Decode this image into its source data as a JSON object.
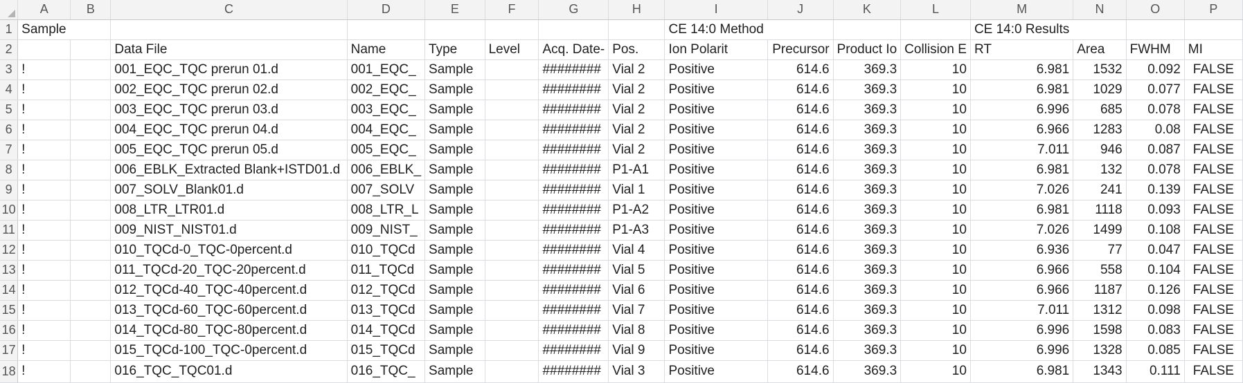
{
  "columns": [
    "A",
    "B",
    "C",
    "D",
    "E",
    "F",
    "G",
    "H",
    "I",
    "J",
    "K",
    "L",
    "M",
    "N",
    "O",
    "P"
  ],
  "rows": [
    {
      "n": "1",
      "a": "Sample",
      "c": "",
      "d": "",
      "e": "",
      "f": "",
      "g": "",
      "h": "",
      "i": "CE 14:0 Method",
      "j": "",
      "k": "",
      "l": "",
      "m": "CE 14:0 Results",
      "nn": "",
      "o": "",
      "p": ""
    },
    {
      "n": "2",
      "a": "",
      "c": "Data File",
      "d": "Name",
      "e": "Type",
      "f": "Level",
      "g": "Acq. Date-",
      "h": "Pos.",
      "i": "Ion Polarit",
      "j": "Precursor",
      "k": "Product Io",
      "l": "Collision E",
      "m": "RT",
      "nn": "Area",
      "o": "FWHM",
      "p": "MI"
    },
    {
      "n": "3",
      "a": "!",
      "c": "001_EQC_TQC prerun 01.d",
      "d": "001_EQC_",
      "e": "Sample",
      "f": "",
      "g": "########",
      "h": "Vial 2",
      "i": "Positive",
      "j": "614.6",
      "k": "369.3",
      "l": "10",
      "m": "6.981",
      "nn": "1532",
      "o": "0.092",
      "p": "FALSE"
    },
    {
      "n": "4",
      "a": "!",
      "c": "002_EQC_TQC prerun 02.d",
      "d": "002_EQC_",
      "e": "Sample",
      "f": "",
      "g": "########",
      "h": "Vial 2",
      "i": "Positive",
      "j": "614.6",
      "k": "369.3",
      "l": "10",
      "m": "6.981",
      "nn": "1029",
      "o": "0.077",
      "p": "FALSE"
    },
    {
      "n": "5",
      "a": "!",
      "c": "003_EQC_TQC prerun 03.d",
      "d": "003_EQC_",
      "e": "Sample",
      "f": "",
      "g": "########",
      "h": "Vial 2",
      "i": "Positive",
      "j": "614.6",
      "k": "369.3",
      "l": "10",
      "m": "6.996",
      "nn": "685",
      "o": "0.078",
      "p": "FALSE"
    },
    {
      "n": "6",
      "a": "!",
      "c": "004_EQC_TQC prerun 04.d",
      "d": "004_EQC_",
      "e": "Sample",
      "f": "",
      "g": "########",
      "h": "Vial 2",
      "i": "Positive",
      "j": "614.6",
      "k": "369.3",
      "l": "10",
      "m": "6.966",
      "nn": "1283",
      "o": "0.08",
      "p": "FALSE"
    },
    {
      "n": "7",
      "a": "!",
      "c": "005_EQC_TQC prerun 05.d",
      "d": "005_EQC_",
      "e": "Sample",
      "f": "",
      "g": "########",
      "h": "Vial 2",
      "i": "Positive",
      "j": "614.6",
      "k": "369.3",
      "l": "10",
      "m": "7.011",
      "nn": "946",
      "o": "0.087",
      "p": "FALSE"
    },
    {
      "n": "8",
      "a": "!",
      "c": "006_EBLK_Extracted Blank+ISTD01.d",
      "d": "006_EBLK_",
      "e": "Sample",
      "f": "",
      "g": "########",
      "h": "P1-A1",
      "i": "Positive",
      "j": "614.6",
      "k": "369.3",
      "l": "10",
      "m": "6.981",
      "nn": "132",
      "o": "0.078",
      "p": "FALSE"
    },
    {
      "n": "9",
      "a": "!",
      "c": "007_SOLV_Blank01.d",
      "d": "007_SOLV",
      "e": "Sample",
      "f": "",
      "g": "########",
      "h": "Vial 1",
      "i": "Positive",
      "j": "614.6",
      "k": "369.3",
      "l": "10",
      "m": "7.026",
      "nn": "241",
      "o": "0.139",
      "p": "FALSE"
    },
    {
      "n": "10",
      "a": "!",
      "c": "008_LTR_LTR01.d",
      "d": "008_LTR_L",
      "e": "Sample",
      "f": "",
      "g": "########",
      "h": "P1-A2",
      "i": "Positive",
      "j": "614.6",
      "k": "369.3",
      "l": "10",
      "m": "6.981",
      "nn": "1118",
      "o": "0.093",
      "p": "FALSE"
    },
    {
      "n": "11",
      "a": "!",
      "c": "009_NIST_NIST01.d",
      "d": "009_NIST_",
      "e": "Sample",
      "f": "",
      "g": "########",
      "h": "P1-A3",
      "i": "Positive",
      "j": "614.6",
      "k": "369.3",
      "l": "10",
      "m": "7.026",
      "nn": "1499",
      "o": "0.108",
      "p": "FALSE"
    },
    {
      "n": "12",
      "a": "!",
      "c": "010_TQCd-0_TQC-0percent.d",
      "d": "010_TQCd",
      "e": "Sample",
      "f": "",
      "g": "########",
      "h": "Vial 4",
      "i": "Positive",
      "j": "614.6",
      "k": "369.3",
      "l": "10",
      "m": "6.936",
      "nn": "77",
      "o": "0.047",
      "p": "FALSE"
    },
    {
      "n": "13",
      "a": "!",
      "c": "011_TQCd-20_TQC-20percent.d",
      "d": "011_TQCd",
      "e": "Sample",
      "f": "",
      "g": "########",
      "h": "Vial 5",
      "i": "Positive",
      "j": "614.6",
      "k": "369.3",
      "l": "10",
      "m": "6.966",
      "nn": "558",
      "o": "0.104",
      "p": "FALSE"
    },
    {
      "n": "14",
      "a": "!",
      "c": "012_TQCd-40_TQC-40percent.d",
      "d": "012_TQCd",
      "e": "Sample",
      "f": "",
      "g": "########",
      "h": "Vial 6",
      "i": "Positive",
      "j": "614.6",
      "k": "369.3",
      "l": "10",
      "m": "6.966",
      "nn": "1187",
      "o": "0.126",
      "p": "FALSE"
    },
    {
      "n": "15",
      "a": "!",
      "c": "013_TQCd-60_TQC-60percent.d",
      "d": "013_TQCd",
      "e": "Sample",
      "f": "",
      "g": "########",
      "h": "Vial 7",
      "i": "Positive",
      "j": "614.6",
      "k": "369.3",
      "l": "10",
      "m": "7.011",
      "nn": "1312",
      "o": "0.098",
      "p": "FALSE"
    },
    {
      "n": "16",
      "a": "!",
      "c": "014_TQCd-80_TQC-80percent.d",
      "d": "014_TQCd",
      "e": "Sample",
      "f": "",
      "g": "########",
      "h": "Vial 8",
      "i": "Positive",
      "j": "614.6",
      "k": "369.3",
      "l": "10",
      "m": "6.996",
      "nn": "1598",
      "o": "0.083",
      "p": "FALSE"
    },
    {
      "n": "17",
      "a": "!",
      "c": "015_TQCd-100_TQC-0percent.d",
      "d": "015_TQCd",
      "e": "Sample",
      "f": "",
      "g": "########",
      "h": "Vial 9",
      "i": "Positive",
      "j": "614.6",
      "k": "369.3",
      "l": "10",
      "m": "6.996",
      "nn": "1328",
      "o": "0.085",
      "p": "FALSE"
    },
    {
      "n": "18",
      "a": "!",
      "c": "016_TQC_TQC01.d",
      "d": "016_TQC_",
      "e": "Sample",
      "f": "",
      "g": "########",
      "h": "Vial 3",
      "i": "Positive",
      "j": "614.6",
      "k": "369.3",
      "l": "10",
      "m": "6.981",
      "nn": "1343",
      "o": "0.111",
      "p": "FALSE"
    }
  ]
}
